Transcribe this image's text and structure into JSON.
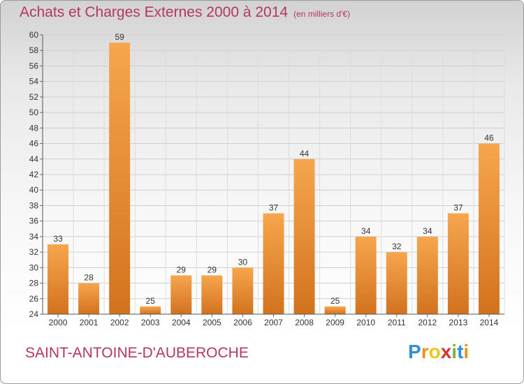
{
  "title": "Achats et Charges Externes 2000 à 2014",
  "subtitle": "(en milliers d'€)",
  "commune": "SAINT-ANTOINE-D'AUBEROCHE",
  "logo": [
    "P",
    "r",
    "o",
    "x",
    "i",
    "t",
    "i"
  ],
  "colors": {
    "bar_top": "#f6a64e",
    "bar_bottom": "#d3721e",
    "title": "#b5365f"
  },
  "chart_data": {
    "type": "bar",
    "categories": [
      "2000",
      "2001",
      "2002",
      "2003",
      "2004",
      "2005",
      "2006",
      "2007",
      "2008",
      "2009",
      "2010",
      "2011",
      "2012",
      "2013",
      "2014"
    ],
    "values": [
      33,
      28,
      59,
      25,
      29,
      29,
      30,
      37,
      44,
      25,
      34,
      32,
      34,
      37,
      46
    ],
    "ylim": [
      24,
      60
    ],
    "yticks": [
      24,
      26,
      28,
      30,
      32,
      34,
      36,
      38,
      40,
      42,
      44,
      46,
      48,
      50,
      52,
      54,
      56,
      58,
      60
    ],
    "grid": true,
    "legend": "none"
  }
}
